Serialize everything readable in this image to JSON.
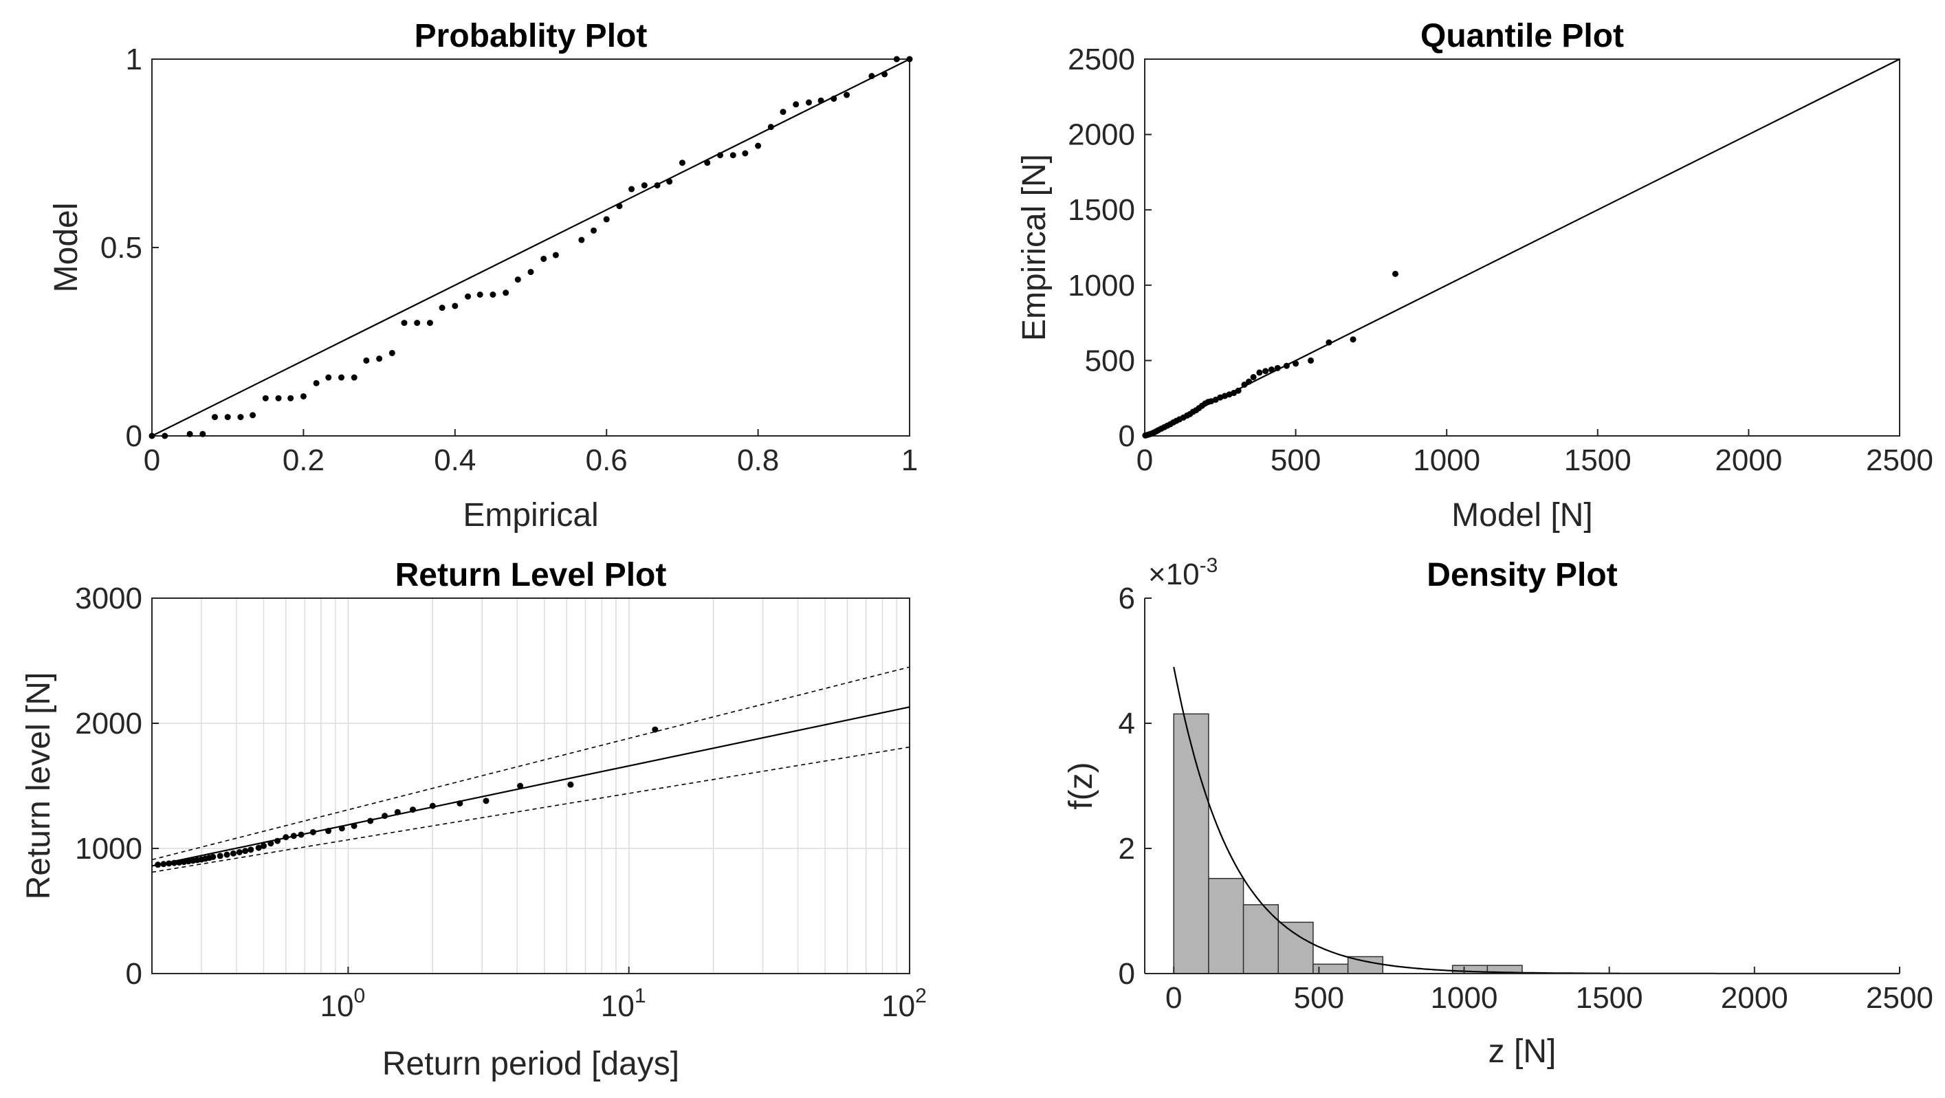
{
  "chart_data": [
    {
      "type": "scatter",
      "title": "Probablity Plot",
      "xlabel": "Empirical",
      "ylabel": "Model",
      "xlim": [
        0,
        1
      ],
      "ylim": [
        0,
        1
      ],
      "xticks": [
        "0",
        "0.2",
        "0.4",
        "0.6",
        "0.8",
        "1"
      ],
      "yticks": [
        "0",
        "0.5",
        "1"
      ],
      "reference_line": [
        [
          0,
          0
        ],
        [
          1,
          1
        ]
      ],
      "points": [
        [
          0.0,
          0.0
        ],
        [
          0.017,
          0.0
        ],
        [
          0.05,
          0.005
        ],
        [
          0.067,
          0.005
        ],
        [
          0.083,
          0.05
        ],
        [
          0.1,
          0.05
        ],
        [
          0.117,
          0.05
        ],
        [
          0.133,
          0.055
        ],
        [
          0.15,
          0.1
        ],
        [
          0.167,
          0.1
        ],
        [
          0.183,
          0.1
        ],
        [
          0.2,
          0.105
        ],
        [
          0.217,
          0.14
        ],
        [
          0.233,
          0.155
        ],
        [
          0.25,
          0.155
        ],
        [
          0.267,
          0.155
        ],
        [
          0.283,
          0.2
        ],
        [
          0.3,
          0.205
        ],
        [
          0.317,
          0.22
        ],
        [
          0.333,
          0.3
        ],
        [
          0.35,
          0.3
        ],
        [
          0.367,
          0.3
        ],
        [
          0.383,
          0.34
        ],
        [
          0.4,
          0.345
        ],
        [
          0.417,
          0.37
        ],
        [
          0.433,
          0.375
        ],
        [
          0.45,
          0.375
        ],
        [
          0.467,
          0.38
        ],
        [
          0.483,
          0.415
        ],
        [
          0.5,
          0.435
        ],
        [
          0.517,
          0.47
        ],
        [
          0.533,
          0.48
        ],
        [
          0.567,
          0.52
        ],
        [
          0.583,
          0.545
        ],
        [
          0.6,
          0.575
        ],
        [
          0.617,
          0.61
        ],
        [
          0.633,
          0.655
        ],
        [
          0.65,
          0.665
        ],
        [
          0.667,
          0.665
        ],
        [
          0.683,
          0.675
        ],
        [
          0.7,
          0.725
        ],
        [
          0.733,
          0.725
        ],
        [
          0.75,
          0.745
        ],
        [
          0.767,
          0.745
        ],
        [
          0.783,
          0.75
        ],
        [
          0.8,
          0.77
        ],
        [
          0.817,
          0.82
        ],
        [
          0.833,
          0.86
        ],
        [
          0.85,
          0.88
        ],
        [
          0.867,
          0.885
        ],
        [
          0.883,
          0.89
        ],
        [
          0.9,
          0.895
        ],
        [
          0.917,
          0.905
        ],
        [
          0.95,
          0.955
        ],
        [
          0.967,
          0.96
        ],
        [
          0.983,
          1.0
        ],
        [
          1.0,
          1.0
        ]
      ]
    },
    {
      "type": "scatter",
      "title": "Quantile Plot",
      "xlabel": "Model [N]",
      "ylabel": "Empirical [N]",
      "xlim": [
        0,
        2500
      ],
      "ylim": [
        0,
        2500
      ],
      "xticks": [
        "0",
        "500",
        "1000",
        "1500",
        "2000",
        "2500"
      ],
      "yticks": [
        "0",
        "500",
        "1000",
        "1500",
        "2000",
        "2500"
      ],
      "reference_line": [
        [
          0,
          0
        ],
        [
          2500,
          2500
        ]
      ],
      "points": [
        [
          2,
          3
        ],
        [
          8,
          6
        ],
        [
          15,
          10
        ],
        [
          22,
          15
        ],
        [
          30,
          22
        ],
        [
          38,
          30
        ],
        [
          45,
          38
        ],
        [
          55,
          48
        ],
        [
          65,
          58
        ],
        [
          75,
          68
        ],
        [
          85,
          78
        ],
        [
          95,
          90
        ],
        [
          105,
          100
        ],
        [
          115,
          110
        ],
        [
          128,
          122
        ],
        [
          140,
          135
        ],
        [
          150,
          145
        ],
        [
          160,
          160
        ],
        [
          170,
          170
        ],
        [
          180,
          185
        ],
        [
          190,
          200
        ],
        [
          200,
          215
        ],
        [
          210,
          225
        ],
        [
          220,
          230
        ],
        [
          235,
          240
        ],
        [
          250,
          255
        ],
        [
          265,
          265
        ],
        [
          280,
          275
        ],
        [
          295,
          285
        ],
        [
          310,
          300
        ],
        [
          330,
          340
        ],
        [
          345,
          360
        ],
        [
          360,
          390
        ],
        [
          380,
          420
        ],
        [
          400,
          430
        ],
        [
          420,
          440
        ],
        [
          440,
          450
        ],
        [
          470,
          465
        ],
        [
          500,
          480
        ],
        [
          550,
          500
        ],
        [
          610,
          620
        ],
        [
          690,
          640
        ],
        [
          830,
          1075
        ]
      ]
    },
    {
      "type": "line",
      "title": "Return Level Plot",
      "xlabel": "Return period [days]",
      "ylabel": "Return level [N]",
      "xscale": "log",
      "xlim": [
        0.2,
        100
      ],
      "ylim": [
        0,
        3000
      ],
      "xticks": [
        {
          "base": "10",
          "exp": "0"
        },
        {
          "base": "10",
          "exp": "1"
        },
        {
          "base": "10",
          "exp": "2"
        }
      ],
      "yticks": [
        "0",
        "1000",
        "2000",
        "3000"
      ],
      "grid": true,
      "series": [
        {
          "name": "fit",
          "style": "solid",
          "x": [
            0.2,
            100
          ],
          "y": [
            860,
            2130
          ]
        },
        {
          "name": "upper confidence",
          "style": "dashed",
          "x": [
            0.2,
            100
          ],
          "y": [
            910,
            2450
          ]
        },
        {
          "name": "lower confidence",
          "style": "dashed",
          "x": [
            0.2,
            100
          ],
          "y": [
            810,
            1810
          ]
        }
      ],
      "points": [
        [
          0.21,
          870
        ],
        [
          0.22,
          875
        ],
        [
          0.23,
          880
        ],
        [
          0.24,
          884
        ],
        [
          0.25,
          888
        ],
        [
          0.26,
          892
        ],
        [
          0.27,
          897
        ],
        [
          0.28,
          902
        ],
        [
          0.29,
          907
        ],
        [
          0.3,
          912
        ],
        [
          0.31,
          918
        ],
        [
          0.32,
          925
        ],
        [
          0.33,
          932
        ],
        [
          0.35,
          940
        ],
        [
          0.37,
          950
        ],
        [
          0.39,
          960
        ],
        [
          0.41,
          970
        ],
        [
          0.43,
          980
        ],
        [
          0.45,
          990
        ],
        [
          0.48,
          1005
        ],
        [
          0.5,
          1020
        ],
        [
          0.53,
          1040
        ],
        [
          0.56,
          1060
        ],
        [
          0.6,
          1090
        ],
        [
          0.64,
          1100
        ],
        [
          0.68,
          1110
        ],
        [
          0.75,
          1130
        ],
        [
          0.85,
          1140
        ],
        [
          0.95,
          1160
        ],
        [
          1.05,
          1180
        ],
        [
          1.2,
          1220
        ],
        [
          1.35,
          1260
        ],
        [
          1.5,
          1290
        ],
        [
          1.7,
          1310
        ],
        [
          2.0,
          1340
        ],
        [
          2.5,
          1360
        ],
        [
          3.1,
          1380
        ],
        [
          4.1,
          1500
        ],
        [
          6.2,
          1510
        ],
        [
          12.4,
          1950
        ]
      ]
    },
    {
      "type": "bar",
      "title": "Density Plot",
      "xlabel": "z [N]",
      "ylabel": "f(z)",
      "y_multiplier": {
        "base": "×10",
        "exp": "-3"
      },
      "xlim": [
        -100,
        2500
      ],
      "ylim": [
        0,
        0.006
      ],
      "xticks": [
        "0",
        "500",
        "1000",
        "1500",
        "2000",
        "2500"
      ],
      "yticks": [
        "0",
        "2",
        "4",
        "6"
      ],
      "bin_width": 120,
      "bins": [
        {
          "start": 0,
          "density": 0.00415
        },
        {
          "start": 120,
          "density": 0.00152
        },
        {
          "start": 240,
          "density": 0.0011
        },
        {
          "start": 360,
          "density": 0.00082
        },
        {
          "start": 480,
          "density": 0.00015
        },
        {
          "start": 600,
          "density": 0.00027
        },
        {
          "start": 720,
          "density": 0.0
        },
        {
          "start": 840,
          "density": 0.0
        },
        {
          "start": 960,
          "density": 0.00013
        },
        {
          "start": 1080,
          "density": 0.00013
        }
      ],
      "density_curve": {
        "type": "exponential",
        "f0": 0.0049,
        "scale": 205
      }
    }
  ]
}
